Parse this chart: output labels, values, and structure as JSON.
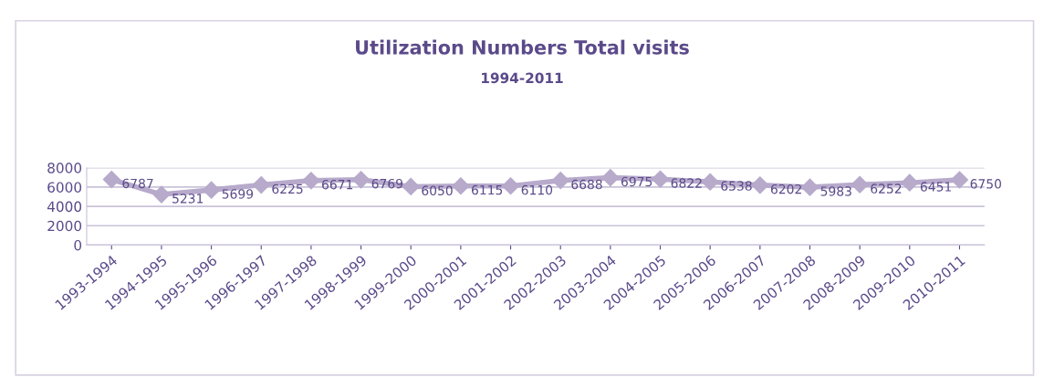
{
  "chart_data": {
    "type": "line",
    "title": "Utilization Numbers Total visits",
    "subtitle": "1994-2011",
    "categories": [
      "1993-1994",
      "1994-1995",
      "1995-1996",
      "1996-1997",
      "1997-1998",
      "1998-1999",
      "1999-2000",
      "2000-2001",
      "2001-2002",
      "2002-2003",
      "2003-2004",
      "2004-2005",
      "2005-2006",
      "2006-2007",
      "2007-2008",
      "2008-2009",
      "2009-2010",
      "2010-2011"
    ],
    "series": [
      {
        "color": "#b7aacb",
        "values": [
          6787,
          5231,
          5699,
          6225,
          6671,
          6769,
          6050,
          6115,
          6110,
          6688,
          6975,
          6822,
          6538,
          6202,
          5983,
          6252,
          6451,
          6750
        ]
      }
    ],
    "ylim": [
      0,
      8000
    ],
    "yticks": [
      0,
      2000,
      4000,
      6000,
      8000
    ],
    "grid": "y",
    "marker": "diamond",
    "line_style": "solid",
    "data_labels": true,
    "legend": false
  }
}
